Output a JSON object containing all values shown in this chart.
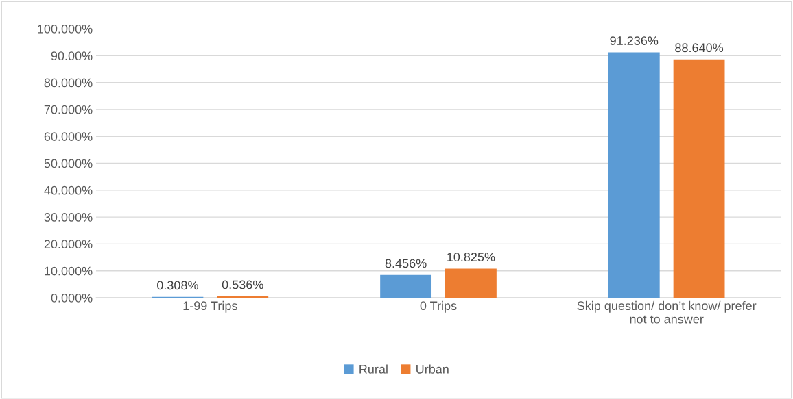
{
  "chart_data": {
    "type": "bar",
    "categories": [
      "1-99 Trips",
      "0 Trips",
      "Skip question/ don’t know/ prefer\nnot to answer"
    ],
    "series": [
      {
        "name": "Rural",
        "color": "#5b9bd5",
        "values": [
          0.308,
          8.456,
          91.236
        ],
        "value_labels": [
          "0.308%",
          "8.456%",
          "91.236%"
        ]
      },
      {
        "name": "Urban",
        "color": "#ed7d31",
        "values": [
          0.536,
          10.825,
          88.64
        ],
        "value_labels": [
          "0.536%",
          "10.825%",
          "88.640%"
        ]
      }
    ],
    "ylim": [
      0,
      100
    ],
    "yticks": [
      {
        "value": 0,
        "label": "0.000%"
      },
      {
        "value": 10,
        "label": "10.000%"
      },
      {
        "value": 20,
        "label": "20.000%"
      },
      {
        "value": 30,
        "label": "30.000%"
      },
      {
        "value": 40,
        "label": "40.000%"
      },
      {
        "value": 50,
        "label": "50.000%"
      },
      {
        "value": 60,
        "label": "60.000%"
      },
      {
        "value": 70,
        "label": "70.000%"
      },
      {
        "value": 80,
        "label": "80.000%"
      },
      {
        "value": 90,
        "label": "90.00%"
      },
      {
        "value": 100,
        "label": "100.000%"
      }
    ],
    "grid": "y",
    "legend": "bottom"
  }
}
